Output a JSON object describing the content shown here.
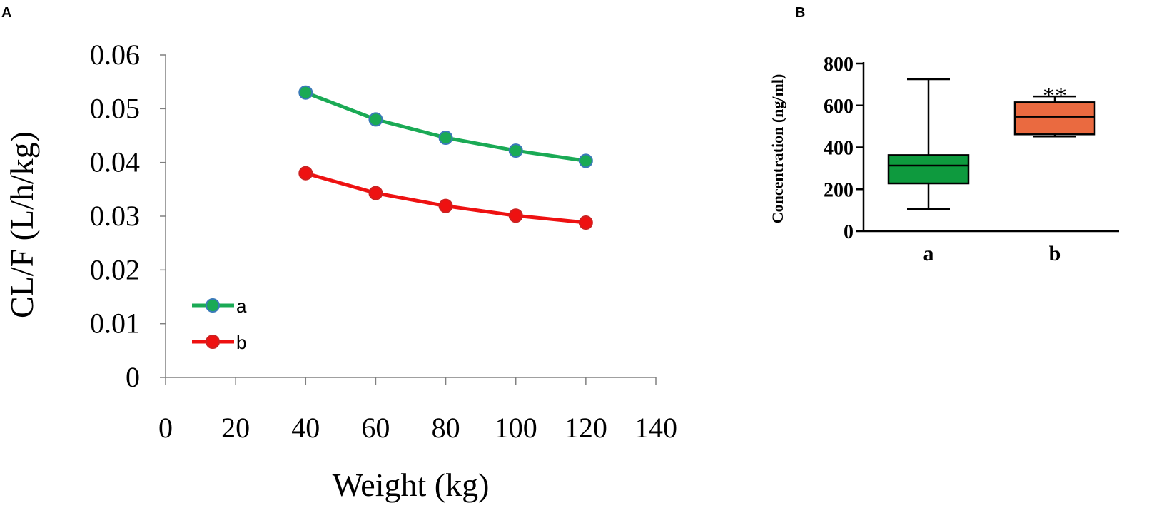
{
  "chart_data": [
    {
      "panel": "A",
      "type": "line",
      "xlabel": "Weight (kg)",
      "ylabel": "CL/F (L/h/kg)",
      "xlim": [
        0,
        140
      ],
      "ylim": [
        0,
        0.06
      ],
      "xticks": [
        "0",
        "20",
        "40",
        "60",
        "80",
        "100",
        "120",
        "140"
      ],
      "yticks": [
        "0",
        "0.01",
        "0.02",
        "0.03",
        "0.04",
        "0.05",
        "0.06"
      ],
      "x": [
        40,
        60,
        80,
        100,
        120
      ],
      "series": [
        {
          "name": "a",
          "color": "#1aaa55",
          "marker_edge": "#3a7ab8",
          "values": [
            0.053,
            0.048,
            0.0446,
            0.0422,
            0.0403
          ]
        },
        {
          "name": "b",
          "color": "#ee1111",
          "marker_edge": "#cc2222",
          "values": [
            0.038,
            0.0343,
            0.0319,
            0.0301,
            0.0288
          ]
        }
      ],
      "legend": "left"
    },
    {
      "panel": "B",
      "type": "box",
      "ylabel": "Concentration (ng/ml)",
      "ylim": [
        0,
        800
      ],
      "yticks": [
        "0",
        "200",
        "400",
        "600",
        "800"
      ],
      "categories": [
        "a",
        "b"
      ],
      "boxes": [
        {
          "name": "a",
          "color": "#0e9a3e",
          "min": 105,
          "q1": 228,
          "median": 313,
          "q3": 363,
          "max": 725,
          "annotation": ""
        },
        {
          "name": "b",
          "color": "#ea6a40",
          "min": 452,
          "q1": 462,
          "median": 546,
          "q3": 615,
          "max": 643,
          "annotation": "**"
        }
      ]
    }
  ]
}
